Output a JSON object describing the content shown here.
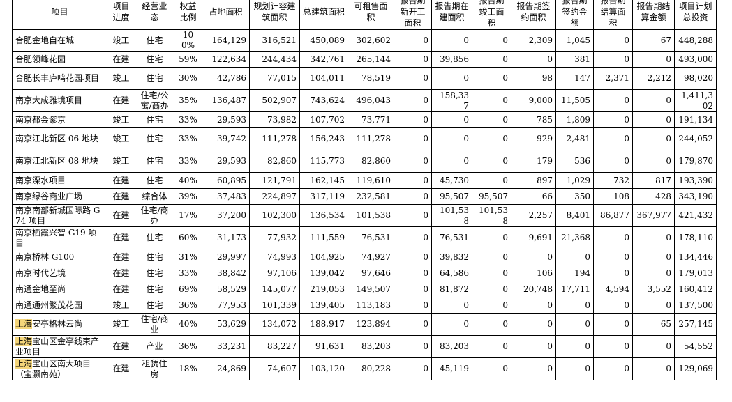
{
  "table": {
    "headers": [
      "项目",
      "项目进度",
      "经营业态",
      "权益比例",
      "占地面积",
      "规划计容建筑面积",
      "总建筑面积",
      "可租售面积",
      "报告期新开工面积",
      "报告期在建面积",
      "报告期竣工面积",
      "报告期签约面积",
      "报告期签约金额",
      "报告期结算面积",
      "报告期结算金额",
      "项目计划总投资"
    ],
    "rows": [
      {
        "name_hl": "",
        "name": "合肥金地自在城",
        "progress": "竣工",
        "type": "住宅",
        "equity": "100%",
        "land": "164,129",
        "plan_gfa": "316,521",
        "total_gfa": "450,089",
        "leasable": "302,602",
        "new_start": "0",
        "under_const": "0",
        "completed": "0",
        "contract_area": "2,309",
        "contract_amt": "1,045",
        "settle_area": "0",
        "settle_amt": "67",
        "invest": "448,288"
      },
      {
        "name_hl": "",
        "name": "合肥领峰花园",
        "progress": "在建",
        "type": "住宅",
        "equity": "59%",
        "land": "122,634",
        "plan_gfa": "244,434",
        "total_gfa": "342,761",
        "leasable": "265,144",
        "new_start": "0",
        "under_const": "39,856",
        "completed": "0",
        "contract_area": "0",
        "contract_amt": "381",
        "settle_area": "0",
        "settle_amt": "0",
        "invest": "493,000"
      },
      {
        "name_hl": "",
        "name": "合肥长丰庐鸣花园项目",
        "progress": "竣工",
        "type": "住宅",
        "equity": "30%",
        "land": "42,786",
        "plan_gfa": "77,015",
        "total_gfa": "104,011",
        "leasable": "78,519",
        "new_start": "0",
        "under_const": "0",
        "completed": "0",
        "contract_area": "98",
        "contract_amt": "147",
        "settle_area": "2,371",
        "settle_amt": "2,212",
        "invest": "98,020"
      },
      {
        "name_hl": "",
        "name": "南京大成雅境项目",
        "progress": "在建",
        "type": "住宅/公寓/商办",
        "equity": "35%",
        "land": "136,487",
        "plan_gfa": "502,907",
        "total_gfa": "743,624",
        "leasable": "496,043",
        "new_start": "0",
        "under_const": "158,337",
        "completed": "0",
        "contract_area": "9,000",
        "contract_amt": "11,505",
        "settle_area": "0",
        "settle_amt": "0",
        "invest": "1,411,302"
      },
      {
        "name_hl": "",
        "name": "南京都会紫京",
        "progress": "竣工",
        "type": "住宅",
        "equity": "33%",
        "land": "29,593",
        "plan_gfa": "73,982",
        "total_gfa": "107,702",
        "leasable": "73,771",
        "new_start": "0",
        "under_const": "0",
        "completed": "0",
        "contract_area": "785",
        "contract_amt": "1,809",
        "settle_area": "0",
        "settle_amt": "0",
        "invest": "191,134"
      },
      {
        "name_hl": "",
        "name": "南京江北新区 06 地块",
        "progress": "竣工",
        "type": "住宅",
        "equity": "33%",
        "land": "39,742",
        "plan_gfa": "111,278",
        "total_gfa": "156,243",
        "leasable": "111,278",
        "new_start": "0",
        "under_const": "0",
        "completed": "0",
        "contract_area": "929",
        "contract_amt": "2,481",
        "settle_area": "0",
        "settle_amt": "0",
        "invest": "244,052"
      },
      {
        "name_hl": "",
        "name": "南京江北新区 08 地块",
        "progress": "竣工",
        "type": "住宅",
        "equity": "33%",
        "land": "29,593",
        "plan_gfa": "82,860",
        "total_gfa": "115,773",
        "leasable": "82,860",
        "new_start": "0",
        "under_const": "0",
        "completed": "0",
        "contract_area": "179",
        "contract_amt": "536",
        "settle_area": "0",
        "settle_amt": "0",
        "invest": "179,870"
      },
      {
        "name_hl": "",
        "name": "南京溧水项目",
        "progress": "在建",
        "type": "住宅",
        "equity": "40%",
        "land": "60,895",
        "plan_gfa": "121,791",
        "total_gfa": "162,145",
        "leasable": "119,610",
        "new_start": "0",
        "under_const": "45,730",
        "completed": "0",
        "contract_area": "897",
        "contract_amt": "1,029",
        "settle_area": "732",
        "settle_amt": "817",
        "invest": "193,390"
      },
      {
        "name_hl": "",
        "name": "南京绿谷商业广场",
        "progress": "在建",
        "type": "综合体",
        "equity": "39%",
        "land": "37,483",
        "plan_gfa": "224,897",
        "total_gfa": "317,119",
        "leasable": "232,581",
        "new_start": "0",
        "under_const": "95,507",
        "completed": "95,507",
        "contract_area": "66",
        "contract_amt": "350",
        "settle_area": "108",
        "settle_amt": "428",
        "invest": "343,190"
      },
      {
        "name_hl": "",
        "name": "南京南部新城国际路 G74 项目",
        "progress": "在建",
        "type": "住宅/商办",
        "equity": "17%",
        "land": "37,200",
        "plan_gfa": "102,300",
        "total_gfa": "136,534",
        "leasable": "101,538",
        "new_start": "0",
        "under_const": "101,538",
        "completed": "101,538",
        "contract_area": "2,257",
        "contract_amt": "8,401",
        "settle_area": "86,877",
        "settle_amt": "367,977",
        "invest": "421,432"
      },
      {
        "name_hl": "",
        "name": "南京栖霞兴智 G19 项目",
        "progress": "在建",
        "type": "住宅",
        "equity": "60%",
        "land": "31,173",
        "plan_gfa": "77,932",
        "total_gfa": "111,559",
        "leasable": "76,531",
        "new_start": "0",
        "under_const": "76,531",
        "completed": "0",
        "contract_area": "9,691",
        "contract_amt": "21,368",
        "settle_area": "0",
        "settle_amt": "0",
        "invest": "178,110"
      },
      {
        "name_hl": "",
        "name": "南京桥林 G100",
        "progress": "在建",
        "type": "住宅",
        "equity": "31%",
        "land": "29,997",
        "plan_gfa": "74,993",
        "total_gfa": "104,925",
        "leasable": "74,927",
        "new_start": "0",
        "under_const": "39,832",
        "completed": "0",
        "contract_area": "0",
        "contract_amt": "0",
        "settle_area": "0",
        "settle_amt": "0",
        "invest": "134,446"
      },
      {
        "name_hl": "",
        "name": "南京时代艺境",
        "progress": "在建",
        "type": "住宅",
        "equity": "33%",
        "land": "38,842",
        "plan_gfa": "97,106",
        "total_gfa": "139,042",
        "leasable": "97,646",
        "new_start": "0",
        "under_const": "64,586",
        "completed": "0",
        "contract_area": "106",
        "contract_amt": "194",
        "settle_area": "0",
        "settle_amt": "0",
        "invest": "179,013"
      },
      {
        "name_hl": "",
        "name": "南通金地至尚",
        "progress": "在建",
        "type": "住宅",
        "equity": "69%",
        "land": "58,529",
        "plan_gfa": "145,077",
        "total_gfa": "219,053",
        "leasable": "149,507",
        "new_start": "0",
        "under_const": "81,872",
        "completed": "0",
        "contract_area": "20,748",
        "contract_amt": "17,711",
        "settle_area": "4,594",
        "settle_amt": "3,552",
        "invest": "160,412"
      },
      {
        "name_hl": "",
        "name": "南通通州繁茂花园",
        "progress": "竣工",
        "type": "住宅",
        "equity": "36%",
        "land": "77,953",
        "plan_gfa": "101,339",
        "total_gfa": "139,405",
        "leasable": "113,183",
        "new_start": "0",
        "under_const": "0",
        "completed": "0",
        "contract_area": "0",
        "contract_amt": "0",
        "settle_area": "0",
        "settle_amt": "0",
        "invest": "137,500"
      },
      {
        "name_hl": "上海",
        "name": "安亭格林云尚",
        "progress": "竣工",
        "type": "住宅/商业",
        "equity": "40%",
        "land": "53,629",
        "plan_gfa": "134,072",
        "total_gfa": "188,917",
        "leasable": "123,894",
        "new_start": "0",
        "under_const": "0",
        "completed": "0",
        "contract_area": "0",
        "contract_amt": "0",
        "settle_area": "0",
        "settle_amt": "65",
        "invest": "257,145"
      },
      {
        "name_hl": "上海",
        "name": "宝山区金亭线束产业项目",
        "progress": "在建",
        "type": "产业",
        "equity": "36%",
        "land": "33,231",
        "plan_gfa": "83,227",
        "total_gfa": "91,631",
        "leasable": "83,203",
        "new_start": "0",
        "under_const": "83,203",
        "completed": "0",
        "contract_area": "0",
        "contract_amt": "0",
        "settle_area": "0",
        "settle_amt": "0",
        "invest": "54,552"
      },
      {
        "name_hl": "上海",
        "name": "宝山区南大项目（宝灏南苑）",
        "progress": "在建",
        "type": "租赁住房",
        "equity": "18%",
        "land": "24,869",
        "plan_gfa": "74,607",
        "total_gfa": "103,120",
        "leasable": "80,228",
        "new_start": "0",
        "under_const": "45,119",
        "completed": "0",
        "contract_area": "0",
        "contract_amt": "0",
        "settle_area": "0",
        "settle_amt": "0",
        "invest": "129,069"
      }
    ]
  },
  "colors": {
    "highlight": "#f5d67a",
    "border": "#000000",
    "text": "#000000"
  }
}
